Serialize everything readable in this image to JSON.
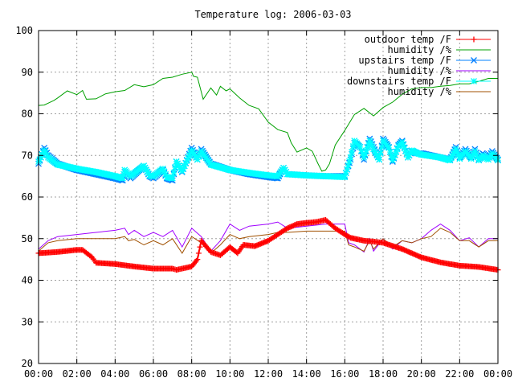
{
  "chart_data": {
    "type": "line",
    "title": "Temperature log: 2006-03-03",
    "xlabel": "",
    "ylabel": "",
    "xlim": [
      0,
      24
    ],
    "ylim": [
      20,
      100
    ],
    "grid": true,
    "legend_position": "top-right",
    "x_ticks": [
      "00:00",
      "02:00",
      "04:00",
      "06:00",
      "08:00",
      "10:00",
      "12:00",
      "14:00",
      "16:00",
      "18:00",
      "20:00",
      "22:00",
      "00:00"
    ],
    "y_ticks": [
      "20",
      "30",
      "40",
      "50",
      "60",
      "70",
      "80",
      "90",
      "100"
    ],
    "series": [
      {
        "name": "outdoor temp /F",
        "color": "#ff0000",
        "marker": "plus",
        "x": [
          0,
          1,
          2,
          2.3,
          2.8,
          3,
          4,
          5,
          6,
          7,
          7.2,
          8,
          8.3,
          8.5,
          9,
          9.5,
          10,
          10.4,
          10.7,
          11.3,
          12,
          12.5,
          13,
          13.5,
          14,
          14.5,
          15,
          15.5,
          16,
          16.3,
          16.7,
          17,
          17.5,
          18,
          19,
          20,
          21,
          22,
          23,
          24
        ],
        "y": [
          46.5,
          46.8,
          47.3,
          47.3,
          45.5,
          44.2,
          43.9,
          43.3,
          42.8,
          42.8,
          42.5,
          43.3,
          45,
          49.5,
          46.8,
          46,
          48,
          46.5,
          48.5,
          48.2,
          49.5,
          51,
          52.5,
          53.5,
          53.8,
          54,
          54.5,
          52.5,
          51,
          50.2,
          49.8,
          49.5,
          49.3,
          49,
          47.5,
          45.5,
          44.3,
          43.5,
          43.2,
          42.5
        ]
      },
      {
        "name": "humidity /%",
        "color": "#00a000",
        "marker": "none",
        "x": [
          0,
          0.3,
          0.8,
          1,
          1.5,
          2,
          2.3,
          2.5,
          3,
          3.5,
          4,
          4.5,
          5,
          5.5,
          6,
          6.5,
          7,
          7.5,
          8,
          8.1,
          8.3,
          8.6,
          9,
          9.3,
          9.5,
          9.8,
          10,
          10.5,
          11,
          11.5,
          12,
          12.5,
          13,
          13.2,
          13.5,
          14,
          14.3,
          14.6,
          14.8,
          15,
          15.2,
          15.5,
          16,
          16.5,
          17,
          17.5,
          18,
          18.5,
          19,
          19.5,
          20,
          20.5,
          21,
          21.5,
          22,
          22.5,
          23,
          23.5,
          24
        ],
        "y": [
          82,
          82.1,
          83.2,
          83.8,
          85.5,
          84.6,
          85.6,
          83.5,
          83.6,
          84.8,
          85.3,
          85.6,
          87,
          86.5,
          87,
          88.5,
          88.8,
          89.5,
          90,
          89,
          88.8,
          83.5,
          86.2,
          84.5,
          86.6,
          85.5,
          86,
          83.8,
          82,
          81.2,
          78,
          76.2,
          75.5,
          73,
          70.8,
          71.8,
          71,
          68,
          66.2,
          66.5,
          68,
          72.5,
          76,
          79.8,
          81.3,
          79.5,
          81.5,
          82.8,
          84.7,
          86,
          86.3,
          86.3,
          86.6,
          86.8,
          87.2,
          87.2,
          87.8,
          88.5,
          88.5
        ]
      },
      {
        "name": "upstairs temp /F",
        "color": "#0080ff",
        "marker": "cross",
        "x": [
          0,
          0.3,
          0.5,
          1,
          2,
          3,
          4,
          4.4,
          4.5,
          4.8,
          5.5,
          5.8,
          6,
          6.5,
          6.7,
          7,
          7.2,
          7.5,
          8,
          8.3,
          8.5,
          9,
          10,
          11,
          12,
          12.5,
          12.8,
          13,
          14,
          15,
          16,
          16.3,
          16.5,
          16.8,
          17,
          17.3,
          17.5,
          17.8,
          18,
          18.3,
          18.5,
          18.8,
          19,
          19.3,
          19.5,
          19.8,
          20,
          21,
          21.5,
          21.8,
          22,
          22.3,
          22.6,
          22.8,
          23,
          23.2,
          23.5,
          23.7,
          24
        ],
        "y": [
          68,
          71.8,
          70,
          68,
          66.5,
          65.5,
          64.5,
          64,
          66,
          64.5,
          67.5,
          65,
          64.5,
          66.5,
          64.5,
          64,
          68.5,
          66,
          71.8,
          69,
          71.5,
          68,
          66.5,
          65.5,
          64.8,
          64.5,
          67,
          65.5,
          65.2,
          65,
          65,
          69,
          73,
          72,
          69,
          74,
          72,
          69,
          74,
          72,
          68.5,
          72.5,
          73.5,
          69.5,
          71,
          70.5,
          70.5,
          69.5,
          69,
          72,
          69.5,
          71.5,
          69.5,
          71.5,
          69,
          70.5,
          69.5,
          71,
          69
        ]
      },
      {
        "name": "humidity /%",
        "color": "#a000ff",
        "marker": "none",
        "x": [
          0,
          0.5,
          1,
          2,
          3,
          4,
          4.5,
          4.7,
          5,
          5.5,
          6,
          6.5,
          7,
          7.5,
          8,
          8.5,
          9,
          9.5,
          10,
          10.5,
          11,
          12,
          12.5,
          13,
          14,
          15,
          16,
          16.2,
          16.5,
          17,
          17.3,
          17.5,
          18,
          18.5,
          19,
          19.5,
          20,
          20.5,
          21,
          21.5,
          22,
          22.5,
          23,
          23.5,
          24
        ],
        "y": [
          47.5,
          49.5,
          50.5,
          51,
          51.5,
          52,
          52.5,
          51,
          52,
          50.5,
          51.5,
          50.5,
          52,
          48,
          52.5,
          50.5,
          47,
          49.5,
          53.5,
          52,
          53,
          53.5,
          54,
          52.5,
          53,
          53.5,
          53.5,
          49,
          48.5,
          46.8,
          50,
          47,
          50,
          47.5,
          49.5,
          49,
          50,
          52,
          53.5,
          52,
          49.5,
          50.2,
          48,
          50,
          50
        ]
      },
      {
        "name": "downstairs temp /F",
        "color": "#00ffff",
        "marker": "asterisk",
        "x": [
          0,
          0.3,
          0.5,
          1,
          2,
          3,
          4,
          4.4,
          4.5,
          4.8,
          5.5,
          5.8,
          6,
          6.5,
          6.7,
          7,
          7.2,
          7.5,
          8,
          8.3,
          8.5,
          9,
          10,
          11,
          12,
          12.5,
          12.8,
          13,
          14,
          15,
          16,
          16.3,
          16.5,
          16.8,
          17,
          17.3,
          17.5,
          17.8,
          18,
          18.3,
          18.5,
          18.8,
          19,
          19.3,
          19.5,
          19.8,
          20,
          21,
          21.5,
          21.8,
          22,
          22.3,
          22.6,
          22.8,
          23,
          23.2,
          23.5,
          23.7,
          24
        ],
        "y": [
          68.5,
          71.2,
          69.5,
          67.8,
          66.8,
          66,
          65,
          64.5,
          66.5,
          65,
          67.5,
          65.2,
          65,
          66.8,
          64.8,
          64.5,
          68.5,
          66.2,
          71.2,
          69,
          71,
          67.8,
          66.5,
          65.8,
          65.2,
          65,
          67,
          65.5,
          65.2,
          65,
          64.8,
          69.5,
          73.5,
          72,
          69.5,
          73.5,
          71.5,
          69,
          73.5,
          71.8,
          68.8,
          72.2,
          73.2,
          69.5,
          71.2,
          70.5,
          70.2,
          69.5,
          68.8,
          71.5,
          69.2,
          71,
          69.2,
          71,
          68.8,
          70,
          69,
          70.5,
          68.8
        ]
      },
      {
        "name": "humidity /%",
        "color": "#a05000",
        "marker": "none",
        "x": [
          0,
          0.5,
          1,
          2,
          3,
          4,
          4.5,
          4.7,
          5,
          5.5,
          6,
          6.5,
          7,
          7.5,
          8,
          8.5,
          9,
          9.5,
          10,
          10.5,
          11,
          12,
          12.5,
          13,
          14,
          15,
          16,
          16.2,
          16.5,
          17,
          17.3,
          17.5,
          18,
          18.5,
          19,
          19.5,
          20,
          20.5,
          21,
          21.5,
          22,
          22.5,
          23,
          23.5,
          24
        ],
        "y": [
          47,
          49,
          49.5,
          50,
          50,
          50,
          50.5,
          49.5,
          49.8,
          48.5,
          49.5,
          48.5,
          50,
          46.5,
          50.5,
          49,
          46.5,
          48.5,
          51,
          50,
          50.5,
          51,
          51.5,
          51.5,
          51.8,
          51.8,
          51.8,
          48.5,
          48,
          47,
          49.5,
          47.5,
          50,
          48,
          49.5,
          49,
          50,
          50.5,
          52.5,
          51.5,
          49.5,
          49.5,
          48,
          49.5,
          49.5
        ]
      }
    ]
  }
}
